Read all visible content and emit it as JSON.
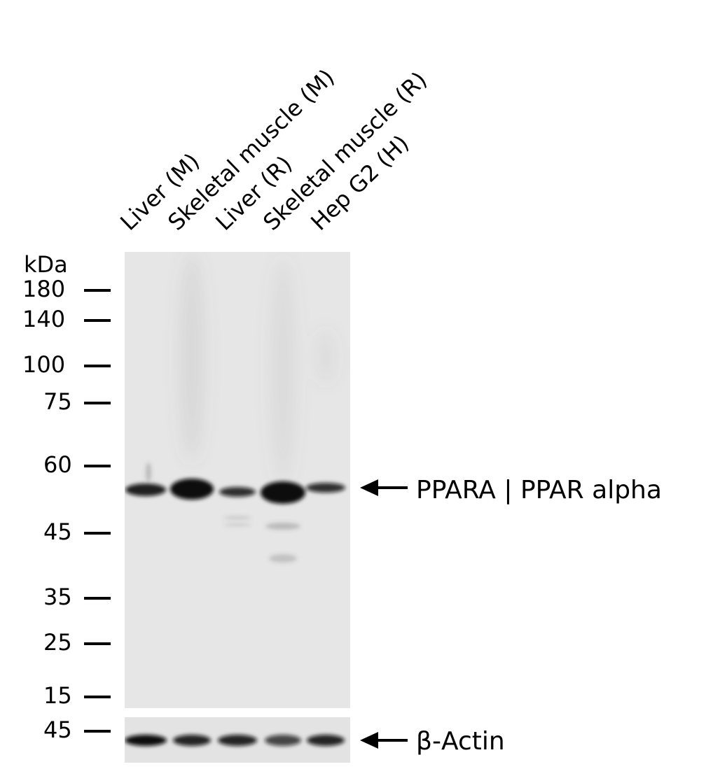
{
  "lanes": [
    "Liver (M)",
    "Skeletal muscle (M)",
    "Liver (R)",
    "Skeletal muscle (R)",
    "Hep G2 (H)"
  ],
  "unit": "kDa",
  "markers": [
    "180",
    "140",
    "100",
    "75",
    "60",
    "45",
    "35",
    "25",
    "15"
  ],
  "actin_marker": "45",
  "targets": {
    "main": "PPARA | PPAR alpha",
    "loading": "β-Actin"
  },
  "colors": {
    "membrane": "#e6e6e6",
    "band": "#111111"
  }
}
